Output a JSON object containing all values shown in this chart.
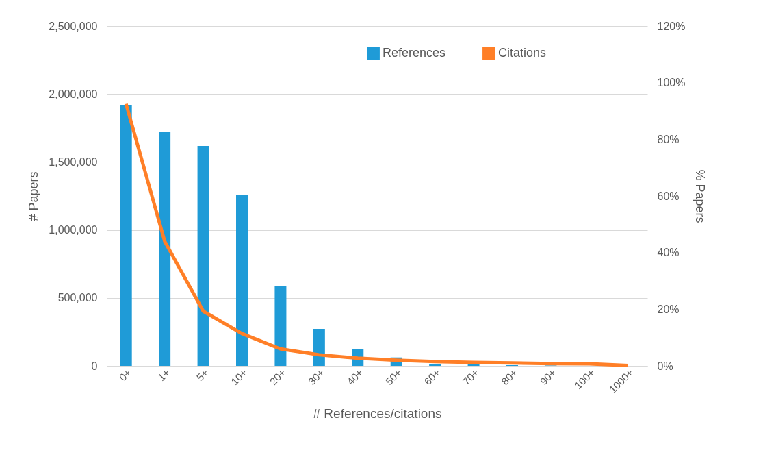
{
  "chart_data": {
    "type": "bar",
    "xlabel": "# References/citations",
    "ylabel": "# Papers",
    "y2label": "% Papers",
    "categories": [
      "0+",
      "1+",
      "5+",
      "10+",
      "20+",
      "30+",
      "40+",
      "50+",
      "60+",
      "70+",
      "80+",
      "90+",
      "100+",
      "1000+"
    ],
    "series": [
      {
        "name": "References",
        "color": "#1f9bd7",
        "values": [
          1920000,
          1722000,
          1618000,
          1255000,
          590000,
          272000,
          126000,
          62000,
          15000,
          10000,
          5000,
          3000,
          null,
          0
        ]
      },
      {
        "name": "Citations",
        "type": "line",
        "axis": "y2",
        "color": "#ff7f27",
        "values": [
          92.5,
          44,
          19.3,
          11.4,
          6,
          3.9,
          2.7,
          2,
          1.5,
          1.2,
          1,
          0.8,
          0.7,
          0.1
        ]
      }
    ],
    "ylim": [
      0,
      2500000
    ],
    "yticks": [
      0,
      {
        "value": 500000,
        "label": "500,000"
      },
      {
        "value": 1000000,
        "label": "1,000,000"
      },
      {
        "value": 1500000,
        "label": "1,500,000"
      },
      {
        "value": 2000000,
        "label": "2,000,000"
      },
      {
        "value": 2500000,
        "label": "2,500,000"
      }
    ],
    "y2lim": [
      0,
      120
    ],
    "y2ticks": [
      {
        "value": 0,
        "label": "0%"
      },
      {
        "value": 20,
        "label": "20%"
      },
      {
        "value": 40,
        "label": "40%"
      },
      {
        "value": 60,
        "label": "60%"
      },
      {
        "value": 80,
        "label": "80%"
      },
      {
        "value": 100,
        "label": "100%"
      },
      {
        "value": 120,
        "label": "120%"
      }
    ],
    "grid": "y",
    "legend": "top",
    "marker": "none",
    "line_style": "solid"
  }
}
